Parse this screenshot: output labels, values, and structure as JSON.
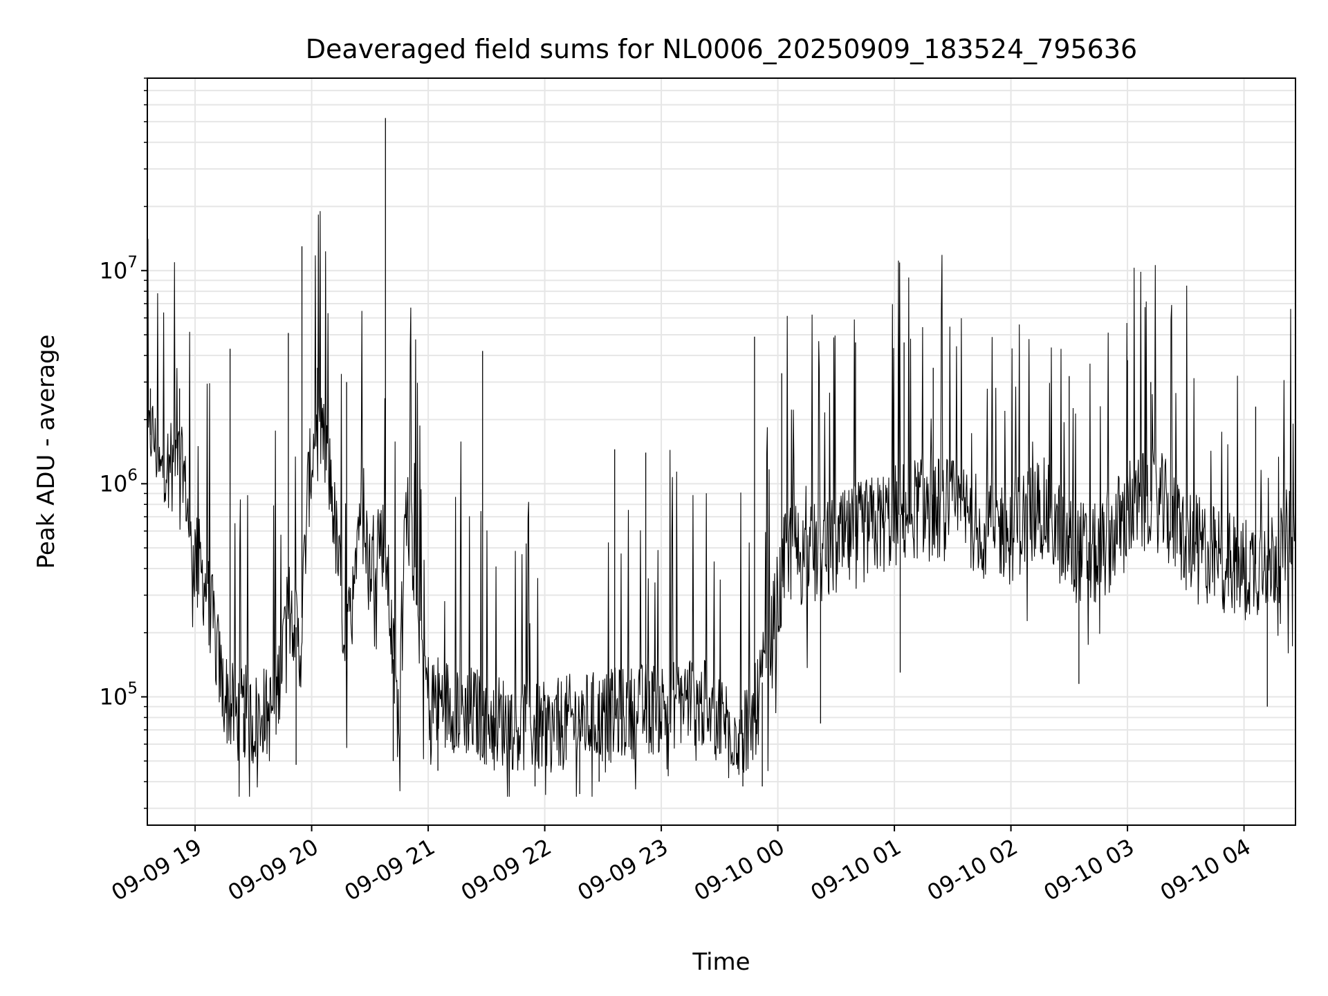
{
  "chart_data": {
    "type": "line",
    "title": "Deaveraged field sums for NL0006_20250909_183524_795636",
    "xlabel": "Time",
    "ylabel": "Peak ADU - average",
    "yscale": "log",
    "ylim": [
      25000,
      80000000
    ],
    "xlim": [
      "2025-09-09 18:35:24",
      "2025-09-10 04:26:30"
    ],
    "grid": true,
    "line_color": "#000000",
    "x_ticks": [
      {
        "value": "2025-09-09 19:00",
        "label": "09-09 19"
      },
      {
        "value": "2025-09-09 20:00",
        "label": "09-09 20"
      },
      {
        "value": "2025-09-09 21:00",
        "label": "09-09 21"
      },
      {
        "value": "2025-09-09 22:00",
        "label": "09-09 22"
      },
      {
        "value": "2025-09-09 23:00",
        "label": "09-09 23"
      },
      {
        "value": "2025-09-10 00:00",
        "label": "09-10 00"
      },
      {
        "value": "2025-09-10 01:00",
        "label": "09-10 01"
      },
      {
        "value": "2025-09-10 02:00",
        "label": "09-10 02"
      },
      {
        "value": "2025-09-10 03:00",
        "label": "09-10 03"
      },
      {
        "value": "2025-09-10 04:00",
        "label": "09-10 04"
      }
    ],
    "y_ticks": [
      {
        "value": 100000,
        "base": "10",
        "exp": "5"
      },
      {
        "value": 1000000,
        "base": "10",
        "exp": "6"
      },
      {
        "value": 10000000,
        "base": "10",
        "exp": "7"
      }
    ],
    "series": [
      {
        "values": [
          [
            "2025-09-09 18:35",
            1500000
          ],
          [
            "2025-09-09 18:38",
            1800000
          ],
          [
            "2025-09-09 18:42",
            1100000
          ],
          [
            "2025-09-09 18:46",
            1300000
          ],
          [
            "2025-09-09 18:50",
            1400000
          ],
          [
            "2025-09-09 18:54",
            1200000
          ],
          [
            "2025-09-09 18:58",
            500000
          ],
          [
            "2025-09-09 19:02",
            400000
          ],
          [
            "2025-09-09 19:06",
            320000
          ],
          [
            "2025-09-09 19:10",
            200000
          ],
          [
            "2025-09-09 19:14",
            110000
          ],
          [
            "2025-09-09 19:18",
            90000
          ],
          [
            "2025-09-09 19:22",
            80000
          ],
          [
            "2025-09-09 19:26",
            85000
          ],
          [
            "2025-09-09 19:30",
            75000
          ],
          [
            "2025-09-09 19:34",
            90000
          ],
          [
            "2025-09-09 19:38",
            80000
          ],
          [
            "2025-09-09 19:42",
            100000
          ],
          [
            "2025-09-09 19:46",
            200000
          ],
          [
            "2025-09-09 19:50",
            300000
          ],
          [
            "2025-09-09 19:54",
            150000
          ],
          [
            "2025-09-09 19:58",
            900000
          ],
          [
            "2025-09-09 20:02",
            1800000
          ],
          [
            "2025-09-09 20:06",
            1500000
          ],
          [
            "2025-09-09 20:10",
            1000000
          ],
          [
            "2025-09-09 20:14",
            400000
          ],
          [
            "2025-09-09 20:18",
            150000
          ],
          [
            "2025-09-09 20:22",
            500000
          ],
          [
            "2025-09-09 20:26",
            900000
          ],
          [
            "2025-09-09 20:30",
            400000
          ],
          [
            "2025-09-09 20:34",
            600000
          ],
          [
            "2025-09-09 20:38",
            500000
          ],
          [
            "2025-09-09 20:42",
            150000
          ],
          [
            "2025-09-09 20:45",
            70000
          ],
          [
            "2025-09-09 20:48",
            900000
          ],
          [
            "2025-09-09 20:52",
            500000
          ],
          [
            "2025-09-09 20:56",
            200000
          ],
          [
            "2025-09-09 21:00",
            100000
          ],
          [
            "2025-09-09 21:15",
            90000
          ],
          [
            "2025-09-09 21:30",
            80000
          ],
          [
            "2025-09-09 21:45",
            75000
          ],
          [
            "2025-09-09 22:00",
            70000
          ],
          [
            "2025-09-09 22:15",
            78000
          ],
          [
            "2025-09-09 22:30",
            80000
          ],
          [
            "2025-09-09 22:45",
            85000
          ],
          [
            "2025-09-09 23:00",
            90000
          ],
          [
            "2025-09-09 23:15",
            100000
          ],
          [
            "2025-09-09 23:30",
            80000
          ],
          [
            "2025-09-09 23:45",
            65000
          ],
          [
            "2025-09-09 23:55",
            150000
          ],
          [
            "2025-09-10 00:05",
            500000
          ],
          [
            "2025-09-10 00:15",
            450000
          ],
          [
            "2025-09-10 00:30",
            500000
          ],
          [
            "2025-09-10 00:45",
            600000
          ],
          [
            "2025-09-10 01:00",
            700000
          ],
          [
            "2025-09-10 01:15",
            800000
          ],
          [
            "2025-09-10 01:30",
            750000
          ],
          [
            "2025-09-10 01:45",
            650000
          ],
          [
            "2025-09-10 02:00",
            600000
          ],
          [
            "2025-09-10 02:15",
            800000
          ],
          [
            "2025-09-10 02:30",
            500000
          ],
          [
            "2025-09-10 02:45",
            450000
          ],
          [
            "2025-09-10 03:00",
            750000
          ],
          [
            "2025-09-10 03:15",
            850000
          ],
          [
            "2025-09-10 03:30",
            550000
          ],
          [
            "2025-09-10 03:45",
            450000
          ],
          [
            "2025-09-10 04:00",
            400000
          ],
          [
            "2025-09-10 04:15",
            450000
          ],
          [
            "2025-09-10 04:26",
            600000
          ]
        ],
        "spikes": [
          [
            "2025-09-09 18:37",
            2800000
          ],
          [
            "2025-09-09 18:52",
            2800000
          ],
          [
            "2025-09-09 19:18",
            4300000
          ],
          [
            "2025-09-09 19:48",
            5100000
          ],
          [
            "2025-09-09 19:55",
            13000000
          ],
          [
            "2025-09-09 20:03",
            3500000
          ],
          [
            "2025-09-09 20:18",
            3000000
          ],
          [
            "2025-09-09 20:38",
            52000000
          ],
          [
            "2025-09-09 21:28",
            4200000
          ],
          [
            "2025-09-09 22:36",
            1450000
          ],
          [
            "2025-09-09 22:52",
            1400000
          ],
          [
            "2025-09-09 23:48",
            4900000
          ],
          [
            "2025-09-10 00:02",
            3300000
          ],
          [
            "2025-09-10 00:40",
            4600000
          ],
          [
            "2025-09-10 01:05",
            4600000
          ],
          [
            "2025-09-10 01:20",
            3500000
          ],
          [
            "2025-09-10 02:30",
            3200000
          ],
          [
            "2025-09-10 03:00",
            3800000
          ],
          [
            "2025-09-10 03:12",
            3000000
          ],
          [
            "2025-09-10 04:06",
            2300000
          ]
        ],
        "dips": [
          [
            "2025-09-09 19:25",
            55000
          ],
          [
            "2025-09-09 19:52",
            48000
          ],
          [
            "2025-09-09 20:42",
            50000
          ],
          [
            "2025-09-09 21:05",
            45000
          ],
          [
            "2025-09-09 21:55",
            38000
          ],
          [
            "2025-09-09 22:18",
            35000
          ],
          [
            "2025-09-09 22:28",
            40000
          ],
          [
            "2025-09-09 23:42",
            38000
          ],
          [
            "2025-09-09 23:52",
            38000
          ],
          [
            "2025-09-10 00:22",
            75000
          ],
          [
            "2025-09-10 01:03",
            130000
          ],
          [
            "2025-09-10 02:35",
            115000
          ],
          [
            "2025-09-10 04:12",
            90000
          ]
        ]
      }
    ]
  }
}
